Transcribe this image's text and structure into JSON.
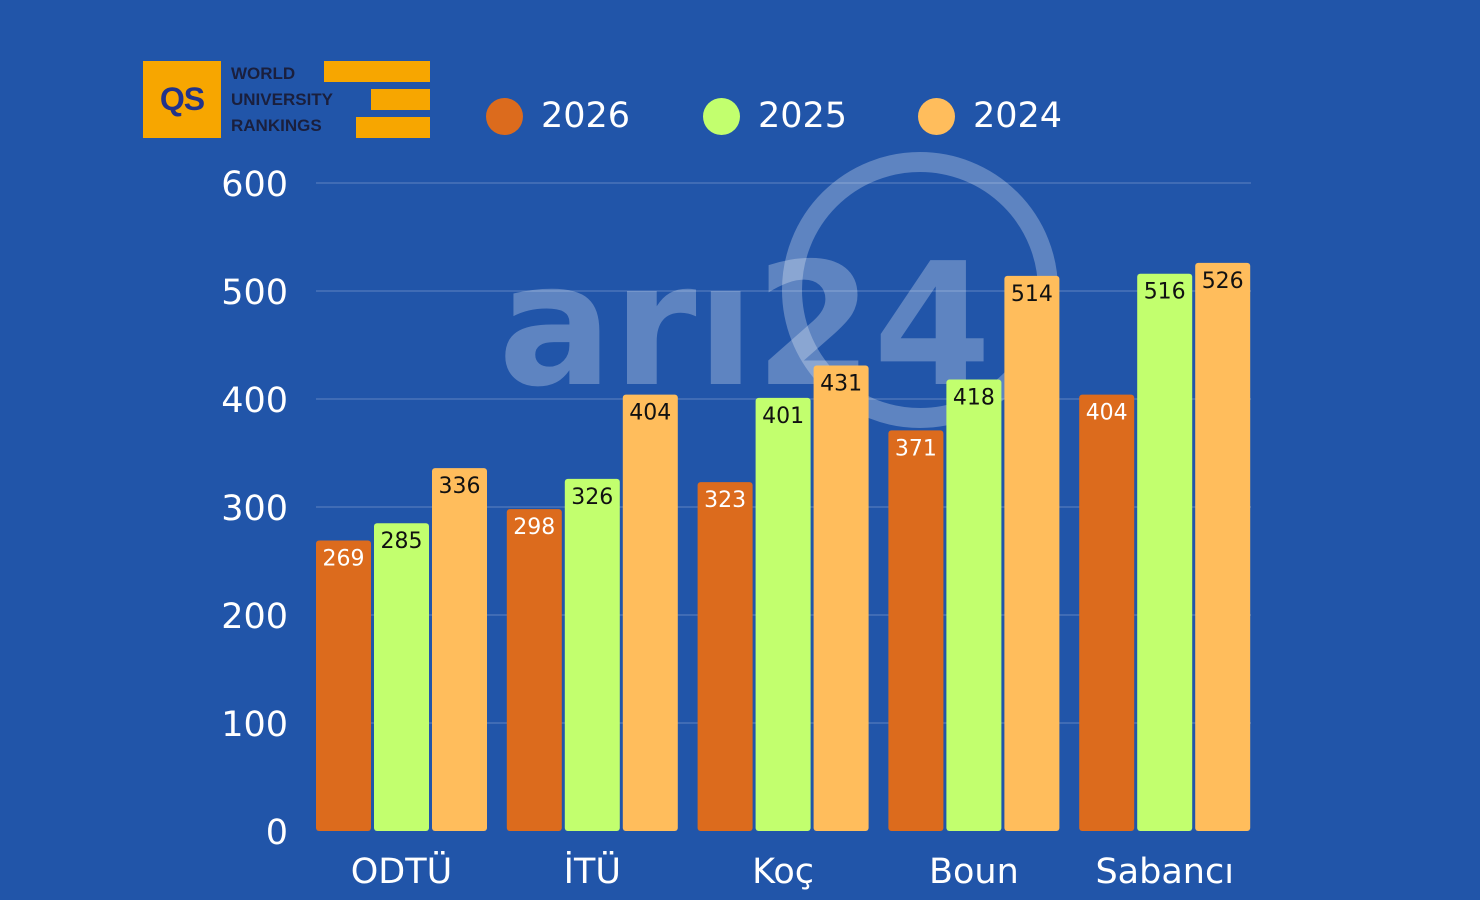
{
  "logo": {
    "mark": "QS",
    "lines": [
      "WORLD",
      "UNIVERSITY",
      "RANKINGS"
    ]
  },
  "watermark": "arı24",
  "colors": {
    "background": "#2155a9",
    "s2026": "#dc6b1d",
    "s2025": "#c2ff6e",
    "s2024": "#ffbd5c",
    "logo_orange": "#f7a600"
  },
  "chart_data": {
    "type": "bar",
    "categories": [
      "ODTÜ",
      "İTÜ",
      "Koç",
      "Boun",
      "Sabancı"
    ],
    "series": [
      {
        "name": "2026",
        "color": "#dc6b1d",
        "values": [
          269,
          298,
          323,
          371,
          404
        ]
      },
      {
        "name": "2025",
        "color": "#c2ff6e",
        "values": [
          285,
          326,
          401,
          418,
          516
        ]
      },
      {
        "name": "2024",
        "color": "#ffbd5c",
        "values": [
          336,
          404,
          431,
          514,
          526
        ]
      }
    ],
    "yticks": [
      0,
      100,
      200,
      300,
      400,
      500,
      600
    ],
    "ylim": [
      0,
      600
    ],
    "legend": "top",
    "grid": true,
    "title": "",
    "xlabel": "",
    "ylabel": ""
  }
}
